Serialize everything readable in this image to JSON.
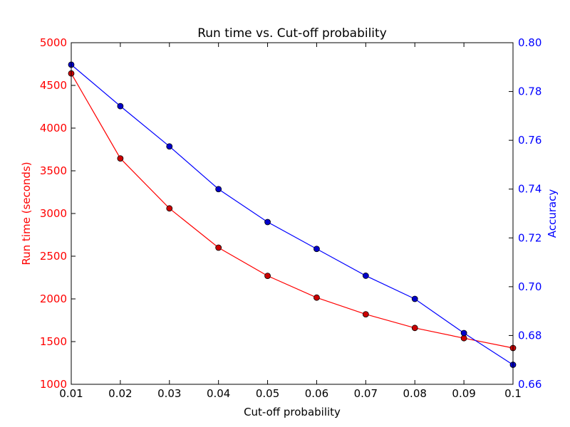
{
  "chart_data": {
    "type": "line",
    "title": "Run time vs. Cut-off probability",
    "xlabel": "Cut-off probability",
    "ylabel_left": "Run time (seconds)",
    "ylabel_right": "Accuracy",
    "x": [
      0.01,
      0.02,
      0.03,
      0.04,
      0.05,
      0.06,
      0.07,
      0.08,
      0.09,
      0.1
    ],
    "x_tick_labels": [
      "0.01",
      "0.02",
      "0.03",
      "0.04",
      "0.05",
      "0.06",
      "0.07",
      "0.08",
      "0.09",
      "0.1"
    ],
    "xlim": [
      0.01,
      0.1
    ],
    "ylim_left": [
      1000,
      5000
    ],
    "ylim_right": [
      0.66,
      0.8
    ],
    "y_left_ticks": [
      "1000",
      "1500",
      "2000",
      "2500",
      "3000",
      "3500",
      "4000",
      "4500",
      "5000"
    ],
    "y_right_ticks": [
      "0.66",
      "0.68",
      "0.70",
      "0.72",
      "0.74",
      "0.76",
      "0.78",
      "0.80"
    ],
    "grid": false,
    "series": [
      {
        "axis": "left",
        "color": "#ff0000",
        "marker_fill": "#cc0000",
        "values": [
          4640,
          3645,
          3060,
          2600,
          2270,
          2015,
          1820,
          1660,
          1540,
          1425
        ]
      },
      {
        "axis": "right",
        "color": "#0000ff",
        "marker_fill": "#0000cc",
        "values": [
          0.791,
          0.774,
          0.7575,
          0.74,
          0.7265,
          0.7155,
          0.7045,
          0.695,
          0.681,
          0.668
        ]
      }
    ]
  }
}
